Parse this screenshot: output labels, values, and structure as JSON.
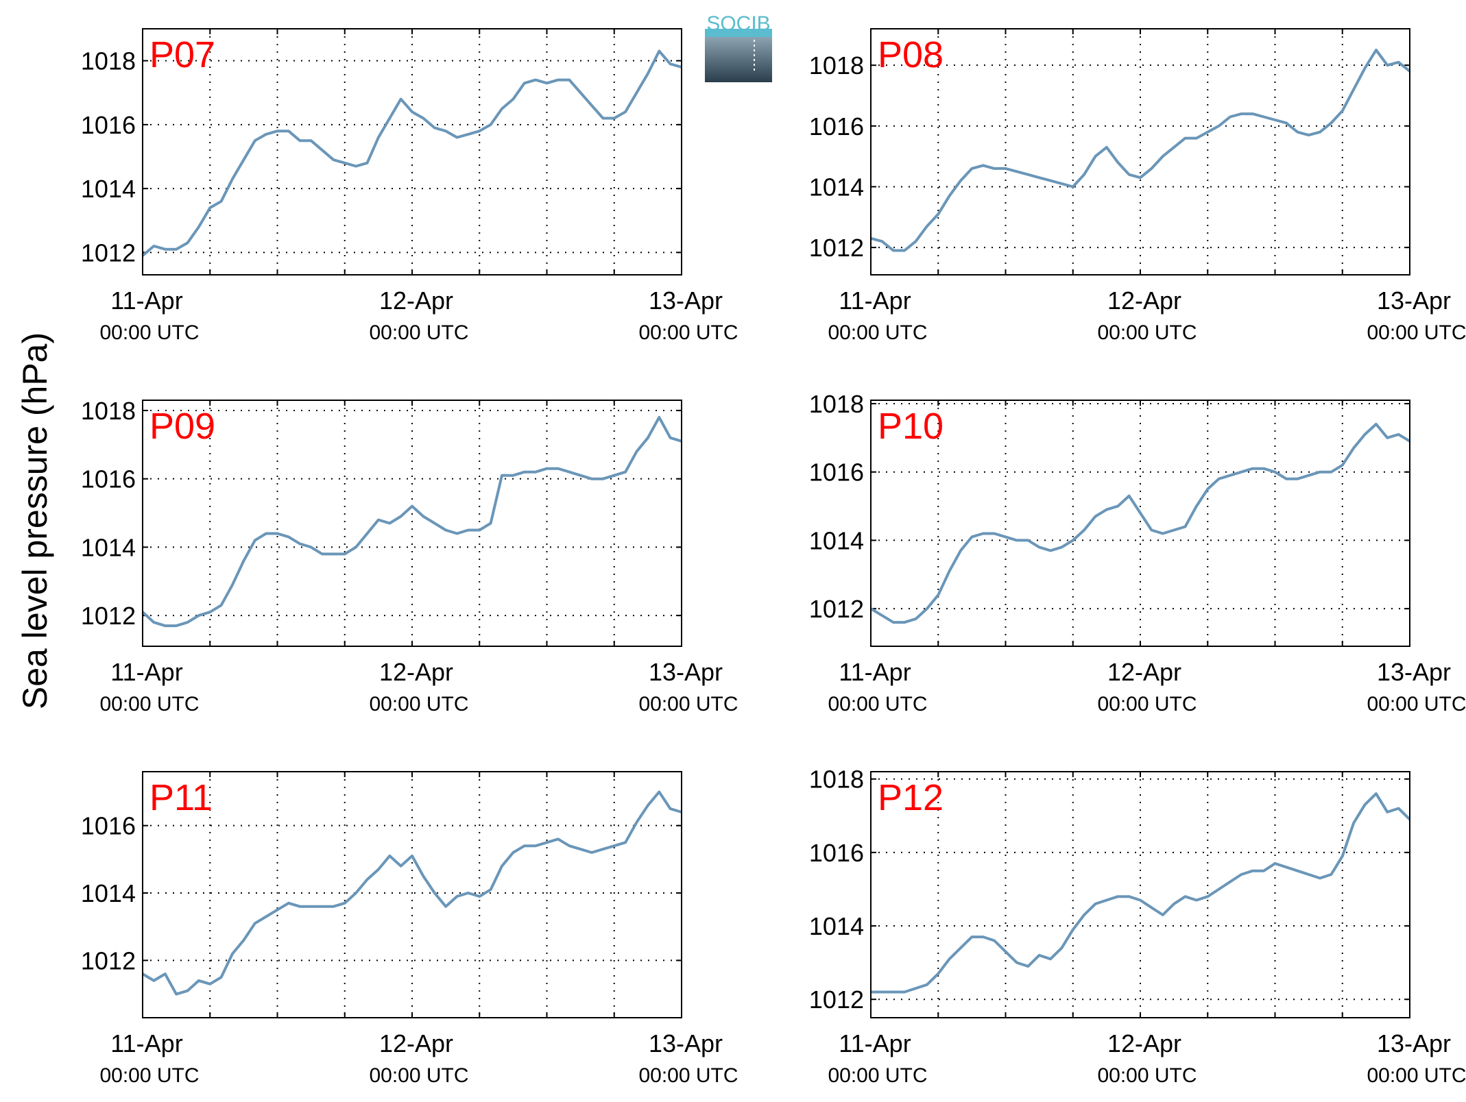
{
  "figure": {
    "ylabel": "Sea level pressure (hPa)",
    "logo_text": "SOCIB",
    "line_color": "#6a96b8",
    "title_color": "#ff0000",
    "grid": "dotted"
  },
  "chart_data": [
    {
      "type": "line",
      "title": "P07",
      "xlim": [
        0,
        48
      ],
      "ylim": [
        1011.3,
        1019.0
      ],
      "yticks": [
        1012,
        1014,
        1016,
        1018
      ],
      "xticks": [
        {
          "x": 0,
          "label": "11-Apr",
          "sublabel": "00:00 UTC"
        },
        {
          "x": 24,
          "label": "12-Apr",
          "sublabel": "00:00 UTC"
        },
        {
          "x": 48,
          "label": "13-Apr",
          "sublabel": "00:00 UTC"
        }
      ],
      "series": [
        {
          "x": [
            0,
            1,
            2,
            3,
            4,
            5,
            6,
            7,
            8,
            9,
            10,
            11,
            12,
            13,
            14,
            15,
            16,
            17,
            18,
            19,
            20,
            21,
            22,
            23,
            24,
            25,
            26,
            27,
            28,
            29,
            30,
            31,
            32,
            33,
            34,
            35,
            36,
            37,
            38,
            39,
            40,
            41,
            42,
            43,
            44,
            45,
            46,
            47,
            48
          ],
          "values": [
            1011.9,
            1012.2,
            1012.1,
            1012.1,
            1012.3,
            1012.8,
            1013.4,
            1013.6,
            1014.3,
            1014.9,
            1015.5,
            1015.7,
            1015.8,
            1015.8,
            1015.5,
            1015.5,
            1015.2,
            1014.9,
            1014.8,
            1014.7,
            1014.8,
            1015.6,
            1016.2,
            1016.8,
            1016.4,
            1016.2,
            1015.9,
            1015.8,
            1015.6,
            1015.7,
            1015.8,
            1016.0,
            1016.5,
            1016.8,
            1017.3,
            1017.4,
            1017.3,
            1017.4,
            1017.4,
            1017.0,
            1016.6,
            1016.2,
            1016.2,
            1016.4,
            1017.0,
            1017.6,
            1018.3,
            1017.9,
            1017.8
          ]
        }
      ]
    },
    {
      "type": "line",
      "title": "P08",
      "xlim": [
        0,
        48
      ],
      "ylim": [
        1011.1,
        1019.2
      ],
      "yticks": [
        1012,
        1014,
        1016,
        1018
      ],
      "xticks": [
        {
          "x": 0,
          "label": "11-Apr",
          "sublabel": "00:00 UTC"
        },
        {
          "x": 24,
          "label": "12-Apr",
          "sublabel": "00:00 UTC"
        },
        {
          "x": 48,
          "label": "13-Apr",
          "sublabel": "00:00 UTC"
        }
      ],
      "series": [
        {
          "x": [
            0,
            1,
            2,
            3,
            4,
            5,
            6,
            7,
            8,
            9,
            10,
            11,
            12,
            13,
            14,
            15,
            16,
            17,
            18,
            19,
            20,
            21,
            22,
            23,
            24,
            25,
            26,
            27,
            28,
            29,
            30,
            31,
            32,
            33,
            34,
            35,
            36,
            37,
            38,
            39,
            40,
            41,
            42,
            43,
            44,
            45,
            46,
            47,
            48
          ],
          "values": [
            1012.3,
            1012.2,
            1011.9,
            1011.9,
            1012.2,
            1012.7,
            1013.1,
            1013.7,
            1014.2,
            1014.6,
            1014.7,
            1014.6,
            1014.6,
            1014.5,
            1014.4,
            1014.3,
            1014.2,
            1014.1,
            1014.0,
            1014.4,
            1015.0,
            1015.3,
            1014.8,
            1014.4,
            1014.3,
            1014.6,
            1015.0,
            1015.3,
            1015.6,
            1015.6,
            1015.8,
            1016.0,
            1016.3,
            1016.4,
            1016.4,
            1016.3,
            1016.2,
            1016.1,
            1015.8,
            1015.7,
            1015.8,
            1016.1,
            1016.5,
            1017.2,
            1017.9,
            1018.5,
            1018.0,
            1018.1,
            1017.8
          ]
        }
      ]
    },
    {
      "type": "line",
      "title": "P09",
      "xlim": [
        0,
        48
      ],
      "ylim": [
        1011.1,
        1018.3
      ],
      "yticks": [
        1012,
        1014,
        1016,
        1018
      ],
      "xticks": [
        {
          "x": 0,
          "label": "11-Apr",
          "sublabel": "00:00 UTC"
        },
        {
          "x": 24,
          "label": "12-Apr",
          "sublabel": "00:00 UTC"
        },
        {
          "x": 48,
          "label": "13-Apr",
          "sublabel": "00:00 UTC"
        }
      ],
      "series": [
        {
          "x": [
            0,
            1,
            2,
            3,
            4,
            5,
            6,
            7,
            8,
            9,
            10,
            11,
            12,
            13,
            14,
            15,
            16,
            17,
            18,
            19,
            20,
            21,
            22,
            23,
            24,
            25,
            26,
            27,
            28,
            29,
            30,
            31,
            32,
            33,
            34,
            35,
            36,
            37,
            38,
            39,
            40,
            41,
            42,
            43,
            44,
            45,
            46,
            47,
            48
          ],
          "values": [
            1012.1,
            1011.8,
            1011.7,
            1011.7,
            1011.8,
            1012.0,
            1012.1,
            1012.3,
            1012.9,
            1013.6,
            1014.2,
            1014.4,
            1014.4,
            1014.3,
            1014.1,
            1014.0,
            1013.8,
            1013.8,
            1013.8,
            1014.0,
            1014.4,
            1014.8,
            1014.7,
            1014.9,
            1015.2,
            1014.9,
            1014.7,
            1014.5,
            1014.4,
            1014.5,
            1014.5,
            1014.7,
            1016.1,
            1016.1,
            1016.2,
            1016.2,
            1016.3,
            1016.3,
            1016.2,
            1016.1,
            1016.0,
            1016.0,
            1016.1,
            1016.2,
            1016.8,
            1017.2,
            1017.8,
            1017.2,
            1017.1
          ]
        }
      ]
    },
    {
      "type": "line",
      "title": "P10",
      "xlim": [
        0,
        48
      ],
      "ylim": [
        1010.9,
        1018.1
      ],
      "yticks": [
        1012,
        1014,
        1016,
        1018
      ],
      "xticks": [
        {
          "x": 0,
          "label": "11-Apr",
          "sublabel": "00:00 UTC"
        },
        {
          "x": 24,
          "label": "12-Apr",
          "sublabel": "00:00 UTC"
        },
        {
          "x": 48,
          "label": "13-Apr",
          "sublabel": "00:00 UTC"
        }
      ],
      "series": [
        {
          "x": [
            0,
            1,
            2,
            3,
            4,
            5,
            6,
            7,
            8,
            9,
            10,
            11,
            12,
            13,
            14,
            15,
            16,
            17,
            18,
            19,
            20,
            21,
            22,
            23,
            24,
            25,
            26,
            27,
            28,
            29,
            30,
            31,
            32,
            33,
            34,
            35,
            36,
            37,
            38,
            39,
            40,
            41,
            42,
            43,
            44,
            45,
            46,
            47,
            48
          ],
          "values": [
            1012.0,
            1011.8,
            1011.6,
            1011.6,
            1011.7,
            1012.0,
            1012.4,
            1013.1,
            1013.7,
            1014.1,
            1014.2,
            1014.2,
            1014.1,
            1014.0,
            1014.0,
            1013.8,
            1013.7,
            1013.8,
            1014.0,
            1014.3,
            1014.7,
            1014.9,
            1015.0,
            1015.3,
            1014.8,
            1014.3,
            1014.2,
            1014.3,
            1014.4,
            1015.0,
            1015.5,
            1015.8,
            1015.9,
            1016.0,
            1016.1,
            1016.1,
            1016.0,
            1015.8,
            1015.8,
            1015.9,
            1016.0,
            1016.0,
            1016.2,
            1016.7,
            1017.1,
            1017.4,
            1017.0,
            1017.1,
            1016.9
          ]
        }
      ]
    },
    {
      "type": "line",
      "title": "P11",
      "xlim": [
        0,
        48
      ],
      "ylim": [
        1010.3,
        1017.6
      ],
      "yticks": [
        1012,
        1014,
        1016
      ],
      "xticks": [
        {
          "x": 0,
          "label": "11-Apr",
          "sublabel": "00:00 UTC"
        },
        {
          "x": 24,
          "label": "12-Apr",
          "sublabel": "00:00 UTC"
        },
        {
          "x": 48,
          "label": "13-Apr",
          "sublabel": "00:00 UTC"
        }
      ],
      "series": [
        {
          "x": [
            0,
            1,
            2,
            3,
            4,
            5,
            6,
            7,
            8,
            9,
            10,
            11,
            12,
            13,
            14,
            15,
            16,
            17,
            18,
            19,
            20,
            21,
            22,
            23,
            24,
            25,
            26,
            27,
            28,
            29,
            30,
            31,
            32,
            33,
            34,
            35,
            36,
            37,
            38,
            39,
            40,
            41,
            42,
            43,
            44,
            45,
            46,
            47,
            48
          ],
          "values": [
            1011.6,
            1011.4,
            1011.6,
            1011.0,
            1011.1,
            1011.4,
            1011.3,
            1011.5,
            1012.2,
            1012.6,
            1013.1,
            1013.3,
            1013.5,
            1013.7,
            1013.6,
            1013.6,
            1013.6,
            1013.6,
            1013.7,
            1014.0,
            1014.4,
            1014.7,
            1015.1,
            1014.8,
            1015.1,
            1014.5,
            1014.0,
            1013.6,
            1013.9,
            1014.0,
            1013.9,
            1014.1,
            1014.8,
            1015.2,
            1015.4,
            1015.4,
            1015.5,
            1015.6,
            1015.4,
            1015.3,
            1015.2,
            1015.3,
            1015.4,
            1015.5,
            1016.1,
            1016.6,
            1017.0,
            1016.5,
            1016.4
          ]
        }
      ]
    },
    {
      "type": "line",
      "title": "P12",
      "xlim": [
        0,
        48
      ],
      "ylim": [
        1011.5,
        1018.2
      ],
      "yticks": [
        1012,
        1014,
        1016,
        1018
      ],
      "xticks": [
        {
          "x": 0,
          "label": "11-Apr",
          "sublabel": "00:00 UTC"
        },
        {
          "x": 24,
          "label": "12-Apr",
          "sublabel": "00:00 UTC"
        },
        {
          "x": 48,
          "label": "13-Apr",
          "sublabel": "00:00 UTC"
        }
      ],
      "series": [
        {
          "x": [
            0,
            1,
            2,
            3,
            4,
            5,
            6,
            7,
            8,
            9,
            10,
            11,
            12,
            13,
            14,
            15,
            16,
            17,
            18,
            19,
            20,
            21,
            22,
            23,
            24,
            25,
            26,
            27,
            28,
            29,
            30,
            31,
            32,
            33,
            34,
            35,
            36,
            37,
            38,
            39,
            40,
            41,
            42,
            43,
            44,
            45,
            46,
            47,
            48
          ],
          "values": [
            1012.2,
            1012.2,
            1012.2,
            1012.2,
            1012.3,
            1012.4,
            1012.7,
            1013.1,
            1013.4,
            1013.7,
            1013.7,
            1013.6,
            1013.3,
            1013.0,
            1012.9,
            1013.2,
            1013.1,
            1013.4,
            1013.9,
            1014.3,
            1014.6,
            1014.7,
            1014.8,
            1014.8,
            1014.7,
            1014.5,
            1014.3,
            1014.6,
            1014.8,
            1014.7,
            1014.8,
            1015.0,
            1015.2,
            1015.4,
            1015.5,
            1015.5,
            1015.7,
            1015.6,
            1015.5,
            1015.4,
            1015.3,
            1015.4,
            1015.9,
            1016.8,
            1017.3,
            1017.6,
            1017.1,
            1017.2,
            1016.9
          ]
        }
      ]
    }
  ]
}
